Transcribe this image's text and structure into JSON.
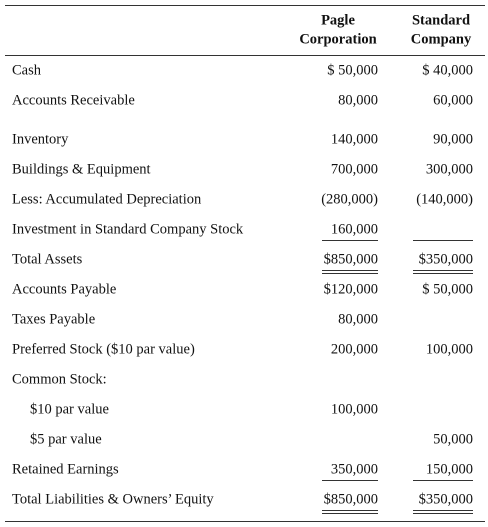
{
  "header": {
    "columns": [
      [
        "Pagle",
        "Corporation"
      ],
      [
        "Standard",
        "Company"
      ]
    ]
  },
  "table": {
    "rows": [
      [
        "Cash",
        "$ 50,000",
        "$ 40,000"
      ],
      [
        "Accounts Receivable",
        "80,000",
        "60,000"
      ],
      [
        "Inventory",
        "140,000",
        "90,000"
      ],
      [
        "Buildings & Equipment",
        "700,000",
        "300,000"
      ],
      [
        "Less: Accumulated Depreciation",
        "(280,000)",
        "(140,000)"
      ],
      [
        "Investment in Standard Company Stock",
        "160,000",
        null
      ],
      [
        "Total Assets",
        "$850,000",
        "$350,000"
      ],
      [
        "Accounts Payable",
        "$120,000",
        "$ 50,000"
      ],
      [
        "Taxes Payable",
        "80,000",
        null
      ],
      [
        "Preferred Stock ($10 par value)",
        "200,000",
        "100,000"
      ],
      [
        "Common Stock:",
        null,
        null
      ],
      [
        "$10 par value",
        "100,000",
        null
      ],
      [
        "$5 par value",
        null,
        "50,000"
      ],
      [
        "Retained Earnings",
        "350,000",
        "150,000"
      ],
      [
        "Total Liabilities & Owners’ Equity",
        "$850,000",
        "$350,000"
      ]
    ]
  }
}
